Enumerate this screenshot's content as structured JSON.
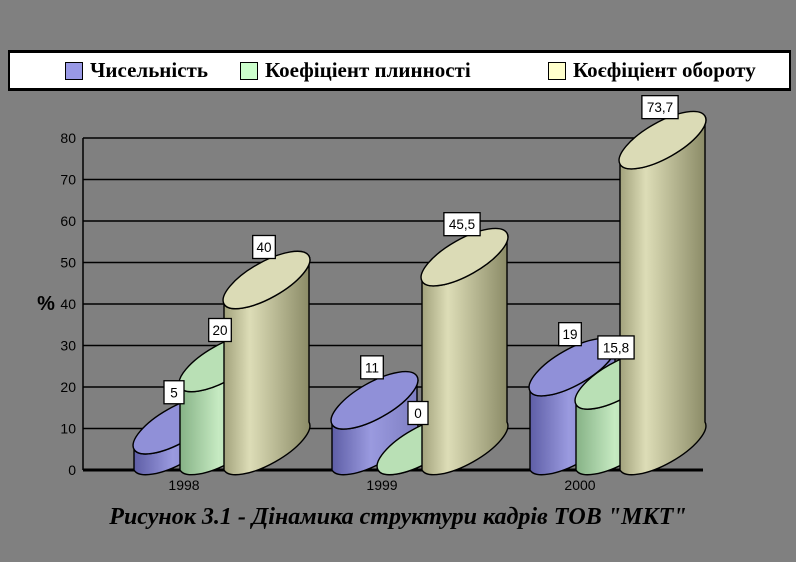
{
  "background_color": "#808080",
  "legend": {
    "items": [
      {
        "label": "Чисельність",
        "color": "#9999E6"
      },
      {
        "label": "Коефіціент плинності",
        "color": "#CCFFCC"
      },
      {
        "label": "Коєфіціент обороту",
        "color": "#FFFFCC"
      }
    ]
  },
  "caption": "Рисунок 3.1 - Дінамика структури кадрів ТОВ \"МКТ\"",
  "chart_data": {
    "type": "bar",
    "subtype": "3d-cylinder",
    "title": "",
    "xlabel": "",
    "ylabel": "%",
    "categories": [
      "1998",
      "1999",
      "2000"
    ],
    "series": [
      {
        "name": "Чисельність",
        "values": [
          5,
          11,
          19
        ],
        "labels": [
          "5",
          "11",
          "19"
        ],
        "color": "#9999E6"
      },
      {
        "name": "Коефіціент плинності",
        "values": [
          20,
          0,
          15.8
        ],
        "labels": [
          "20",
          "0",
          "15,8"
        ],
        "color": "#CCFFCC"
      },
      {
        "name": "Коєфіціент обороту",
        "values": [
          40,
          45.5,
          73.7
        ],
        "labels": [
          "40",
          "45,5",
          "73,7"
        ],
        "color": "#FFFFCC"
      }
    ],
    "ylim": [
      0,
      80
    ],
    "ytick_step": 10,
    "yticks": [
      "0",
      "10",
      "20",
      "30",
      "40",
      "50",
      "60",
      "70",
      "80"
    ],
    "grid": true,
    "legend_position": "top",
    "data_labels_visible": true
  }
}
